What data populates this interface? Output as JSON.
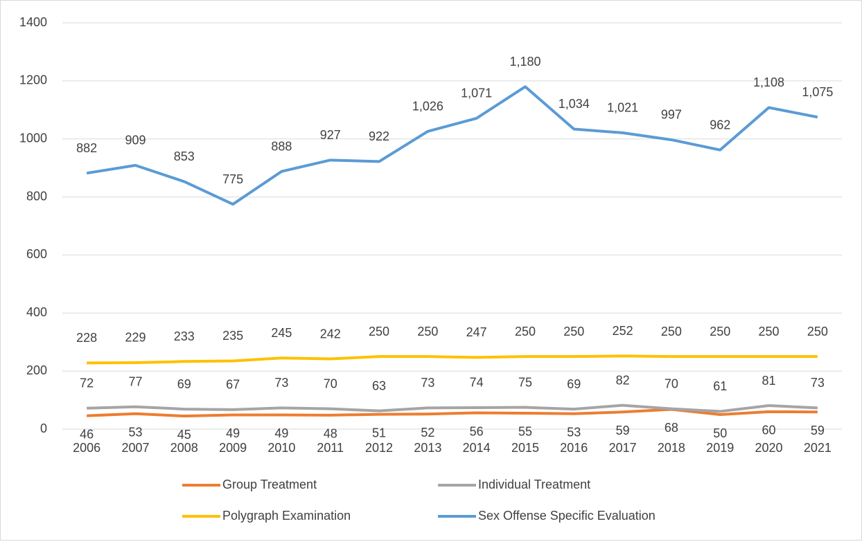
{
  "chart_data": {
    "type": "line",
    "categories": [
      "2006",
      "2007",
      "2008",
      "2009",
      "2010",
      "2011",
      "2012",
      "2013",
      "2014",
      "2015",
      "2016",
      "2017",
      "2018",
      "2019",
      "2020",
      "2021"
    ],
    "series": [
      {
        "name": "Group Treatment",
        "color": "#ed7d31",
        "values": [
          46,
          53,
          45,
          49,
          49,
          48,
          51,
          52,
          56,
          55,
          53,
          59,
          68,
          50,
          60,
          59
        ]
      },
      {
        "name": "Individual Treatment",
        "color": "#a5a5a5",
        "values": [
          72,
          77,
          69,
          67,
          73,
          70,
          63,
          73,
          74,
          75,
          69,
          82,
          70,
          61,
          81,
          73
        ]
      },
      {
        "name": "Polygraph Examination",
        "color": "#ffc000",
        "values": [
          228,
          229,
          233,
          235,
          245,
          242,
          250,
          250,
          247,
          250,
          250,
          252,
          250,
          250,
          250,
          250
        ]
      },
      {
        "name": "Sex Offense Specific Evaluation",
        "color": "#5b9bd5",
        "values": [
          882,
          909,
          853,
          775,
          888,
          927,
          922,
          1026,
          1071,
          1180,
          1034,
          1021,
          997,
          962,
          1108,
          1075
        ],
        "value_labels": [
          "882",
          "909",
          "853",
          "775",
          "888",
          "927",
          "922",
          "1,026",
          "1,071",
          "1,180",
          "1,034",
          "1,021",
          "997",
          "962",
          "1,108",
          "1,075"
        ]
      }
    ],
    "ylim": [
      0,
      1400
    ],
    "yticks": [
      0,
      200,
      400,
      600,
      800,
      1000,
      1200,
      1400
    ],
    "grid": true,
    "legend": "bottom"
  }
}
